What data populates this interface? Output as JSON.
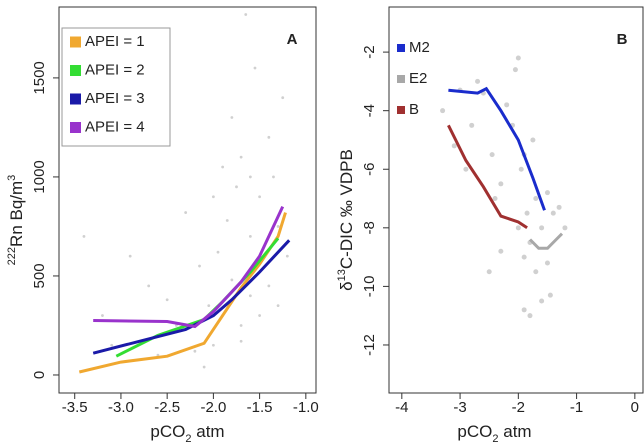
{
  "chart_data": [
    {
      "type": "line",
      "panel_label": "A",
      "xlim": [
        -3.67,
        -0.89
      ],
      "ylim": [
        -91,
        1858
      ],
      "xticks": [
        -3.5,
        {
          "value": -3,
          "label": "-3.0"
        },
        -2.5,
        {
          "value": -2,
          "label": "-2.0"
        },
        -1.5,
        {
          "value": -1,
          "label": "-1.0"
        }
      ],
      "yticks": [
        0,
        500,
        1000,
        1500
      ],
      "x_label": [
        "pCO",
        "2",
        " atm"
      ],
      "y_label": [
        "222",
        "Rn Bq/m",
        "3"
      ],
      "points": {
        "color": "#d0d0d0",
        "x": [
          -3.4,
          -3.2,
          -3.1,
          -2.9,
          -2.7,
          -2.6,
          -2.5,
          -2.4,
          -2.3,
          -2.2,
          -2.15,
          -2.1,
          -2.05,
          -2.0,
          -2.0,
          -1.95,
          -1.9,
          -1.9,
          -1.85,
          -1.8,
          -1.8,
          -1.75,
          -1.7,
          -1.7,
          -1.65,
          -1.6,
          -1.6,
          -1.55,
          -1.5,
          -1.5,
          -1.45,
          -1.4,
          -1.4,
          -1.35,
          -1.3,
          -1.3,
          -1.25,
          -1.2,
          -1.7,
          -1.6
        ],
        "y": [
          700,
          300,
          150,
          600,
          450,
          100,
          380,
          250,
          820,
          120,
          550,
          40,
          350,
          900,
          150,
          620,
          1050,
          300,
          780,
          1300,
          480,
          950,
          1100,
          250,
          1820,
          700,
          400,
          1550,
          900,
          300,
          650,
          1200,
          450,
          1000,
          750,
          350,
          1400,
          600,
          170,
          1000
        ]
      },
      "series": [
        {
          "name": "APEI = 1",
          "color": "#f0a830",
          "x": [
            -3.45,
            -3.0,
            -2.5,
            -2.1,
            -1.9,
            -1.7,
            -1.5,
            -1.3,
            -1.22
          ],
          "values": [
            15,
            65,
            95,
            160,
            300,
            440,
            560,
            700,
            820
          ]
        },
        {
          "name": "APEI = 2",
          "color": "#33dd33",
          "x": [
            -3.05,
            -2.6,
            -2.1,
            -1.9,
            -1.6,
            -1.3
          ],
          "values": [
            95,
            200,
            280,
            370,
            520,
            690
          ]
        },
        {
          "name": "APEI = 3",
          "color": "#1a1aa8",
          "x": [
            -3.3,
            -2.8,
            -2.3,
            -2.0,
            -1.8,
            -1.5,
            -1.18
          ],
          "values": [
            110,
            170,
            230,
            300,
            380,
            520,
            680
          ]
        },
        {
          "name": "APEI = 4",
          "color": "#9933cc",
          "x": [
            -3.3,
            -2.5,
            -2.2,
            -2.0,
            -1.7,
            -1.5,
            -1.25
          ],
          "values": [
            275,
            270,
            245,
            320,
            470,
            600,
            850
          ]
        }
      ]
    },
    {
      "type": "line",
      "panel_label": "B",
      "xlim": [
        -4.22,
        0.14
      ],
      "ylim": [
        -13.64,
        -0.46
      ],
      "xticks": [
        -4,
        -3,
        -2,
        -1,
        0
      ],
      "yticks": [
        -2,
        -4,
        -6,
        -8,
        -10,
        -12
      ],
      "x_label": [
        "pCO",
        "2",
        " atm"
      ],
      "y_label": [
        "δ",
        "13",
        "C-DIC ‰ VDPB"
      ],
      "points": {
        "color": "#d0d0d0",
        "x": [
          -3.3,
          -3.1,
          -3.0,
          -2.9,
          -2.8,
          -2.7,
          -2.6,
          -2.5,
          -2.45,
          -2.4,
          -2.3,
          -2.2,
          -2.1,
          -2.0,
          -2.0,
          -1.95,
          -1.9,
          -1.9,
          -1.85,
          -1.8,
          -1.8,
          -1.75,
          -1.7,
          -1.7,
          -1.6,
          -1.6,
          -1.5,
          -1.5,
          -1.45,
          -1.4,
          -1.3,
          -1.2,
          -1.9,
          -2.05,
          -2.3
        ],
        "y": [
          -4.0,
          -5.2,
          -3.3,
          -6.0,
          -4.5,
          -3.0,
          -3.4,
          -9.5,
          -5.5,
          -7.0,
          -6.5,
          -3.8,
          -4.5,
          -2.2,
          -8.0,
          -6.0,
          -10.8,
          -9.0,
          -7.5,
          -11.0,
          -8.5,
          -5.0,
          -9.5,
          -7.0,
          -8.0,
          -10.5,
          -9.2,
          -6.8,
          -10.3,
          -7.5,
          -7.3,
          -8.0,
          -5.5,
          -2.6,
          -8.8
        ]
      },
      "series": [
        {
          "name": "M2",
          "color": "#1a2ccc",
          "x": [
            -3.2,
            -2.7,
            -2.55,
            -2.3,
            -2.0,
            -1.75,
            -1.55
          ],
          "values": [
            -3.3,
            -3.4,
            -3.25,
            -4.0,
            -5.0,
            -6.3,
            -7.4
          ]
        },
        {
          "name": "E2",
          "color": "#a8a8a8",
          "x": [
            -1.8,
            -1.65,
            -1.5,
            -1.35,
            -1.25
          ],
          "values": [
            -8.4,
            -8.7,
            -8.7,
            -8.4,
            -8.2
          ]
        },
        {
          "name": "B",
          "color": "#a03030",
          "x": [
            -3.2,
            -2.9,
            -2.6,
            -2.3,
            -2.0,
            -1.85
          ],
          "values": [
            -4.5,
            -5.7,
            -6.6,
            -7.6,
            -7.8,
            -8.0
          ]
        }
      ]
    }
  ]
}
